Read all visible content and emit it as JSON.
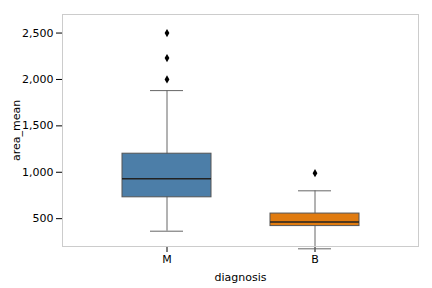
{
  "chart_data": {
    "type": "box",
    "xlabel": "diagnosis",
    "ylabel": "area_mean",
    "categories": [
      "M",
      "B"
    ],
    "q1": [
      730,
      420
    ],
    "median": [
      930,
      465
    ],
    "q3": [
      1200,
      555
    ],
    "whisker_low": [
      365,
      175
    ],
    "whisker_high": [
      1880,
      800
    ],
    "outliers": [
      [
        2000,
        2230,
        2500
      ],
      [
        990
      ]
    ],
    "colors": [
      "#4c7ea8",
      "#e07b10"
    ],
    "ylim": [
      200,
      2700
    ],
    "yticks": [
      500,
      1000,
      1500,
      2000,
      2500
    ],
    "grid": false
  }
}
